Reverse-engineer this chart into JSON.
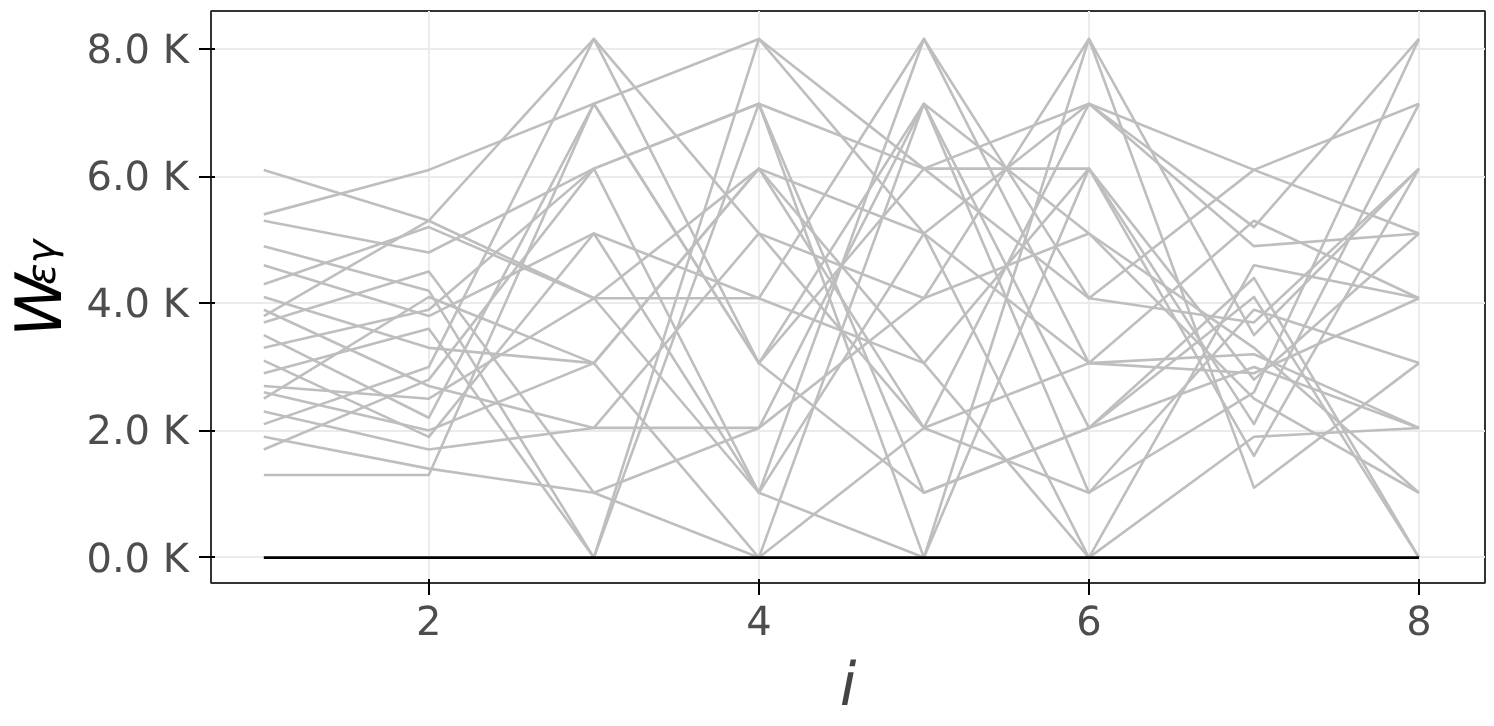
{
  "chart_data": {
    "type": "line",
    "xlabel": "i",
    "ylabel": "W$_{εγ}$",
    "x": [
      1,
      2,
      3,
      4,
      5,
      6,
      7,
      8
    ],
    "xlim": [
      0.68,
      8.4
    ],
    "ylim": [
      -400,
      8600
    ],
    "xticks": [
      2,
      4,
      6,
      8
    ],
    "yticks": [
      {
        "value": 0,
        "label": "0.0 K"
      },
      {
        "value": 2000,
        "label": "2.0 K"
      },
      {
        "value": 4000,
        "label": "4.0 K"
      },
      {
        "value": 6000,
        "label": "6.0 K"
      },
      {
        "value": 8000,
        "label": "8.0 K"
      }
    ],
    "grid": true,
    "series": [
      {
        "color": "#bebebe",
        "values": [
          6100,
          5300,
          8160,
          3060,
          7140,
          2040,
          4100,
          0
        ]
      },
      {
        "color": "#bebebe",
        "values": [
          5400,
          6100,
          7140,
          8160,
          6120,
          7140,
          5200,
          8160
        ]
      },
      {
        "color": "#bebebe",
        "values": [
          5300,
          4800,
          6120,
          1020,
          8160,
          4080,
          6100,
          7140
        ]
      },
      {
        "color": "#bebebe",
        "values": [
          4900,
          4200,
          0,
          7140,
          0,
          8160,
          3500,
          6120
        ]
      },
      {
        "color": "#bebebe",
        "values": [
          4600,
          3800,
          5100,
          4080,
          3060,
          6120,
          2800,
          5100
        ]
      },
      {
        "color": "#bebebe",
        "values": [
          4300,
          5200,
          4080,
          6120,
          5100,
          0,
          4600,
          4080
        ]
      },
      {
        "color": "#bebebe",
        "values": [
          4100,
          3300,
          3060,
          0,
          7140,
          1020,
          3900,
          3060
        ]
      },
      {
        "color": "#bebebe",
        "values": [
          3900,
          2700,
          2040,
          5100,
          2040,
          3060,
          3200,
          2040
        ]
      },
      {
        "color": "#bebebe",
        "values": [
          3700,
          4500,
          1020,
          2040,
          4080,
          5100,
          2500,
          1020
        ]
      },
      {
        "color": "#bebebe",
        "values": [
          3500,
          2200,
          7140,
          3060,
          1020,
          2040,
          4400,
          0
        ]
      },
      {
        "color": "#bebebe",
        "values": [
          3300,
          3900,
          6120,
          7140,
          6120,
          4080,
          3700,
          6120
        ]
      },
      {
        "color": "#bebebe",
        "values": [
          3100,
          1900,
          5100,
          1020,
          0,
          6120,
          2100,
          7140
        ]
      },
      {
        "color": "#bebebe",
        "values": [
          2900,
          3600,
          0,
          8160,
          5100,
          7140,
          4900,
          5100
        ]
      },
      {
        "color": "#bebebe",
        "values": [
          2700,
          2500,
          4080,
          4080,
          8160,
          3060,
          2900,
          4080
        ]
      },
      {
        "color": "#bebebe",
        "values": [
          2500,
          4100,
          3060,
          6120,
          3060,
          0,
          1900,
          2040
        ]
      },
      {
        "color": "#bebebe",
        "values": [
          2300,
          1700,
          2040,
          2040,
          7140,
          5100,
          3300,
          1020
        ]
      },
      {
        "color": "#bebebe",
        "values": [
          2100,
          3000,
          8160,
          5100,
          4080,
          8160,
          1100,
          3060
        ]
      },
      {
        "color": "#bebebe",
        "values": [
          1900,
          1400,
          1020,
          0,
          2040,
          1020,
          2600,
          8160
        ]
      },
      {
        "color": "#bebebe",
        "values": [
          1700,
          2800,
          6120,
          7140,
          1020,
          2040,
          3000,
          2040
        ]
      },
      {
        "color": "#bebebe",
        "values": [
          1300,
          1300,
          7140,
          3060,
          6120,
          6120,
          1600,
          6120
        ]
      },
      {
        "color": "#bebebe",
        "values": [
          3800,
          5300,
          4080,
          1020,
          5100,
          3060,
          5300,
          4080
        ]
      },
      {
        "color": "#bebebe",
        "values": [
          2600,
          2000,
          3060,
          6120,
          2040,
          7140,
          6100,
          5100
        ]
      },
      {
        "color": "#000000",
        "values": [
          0,
          0,
          0,
          0,
          0,
          0,
          0,
          0
        ]
      }
    ]
  }
}
